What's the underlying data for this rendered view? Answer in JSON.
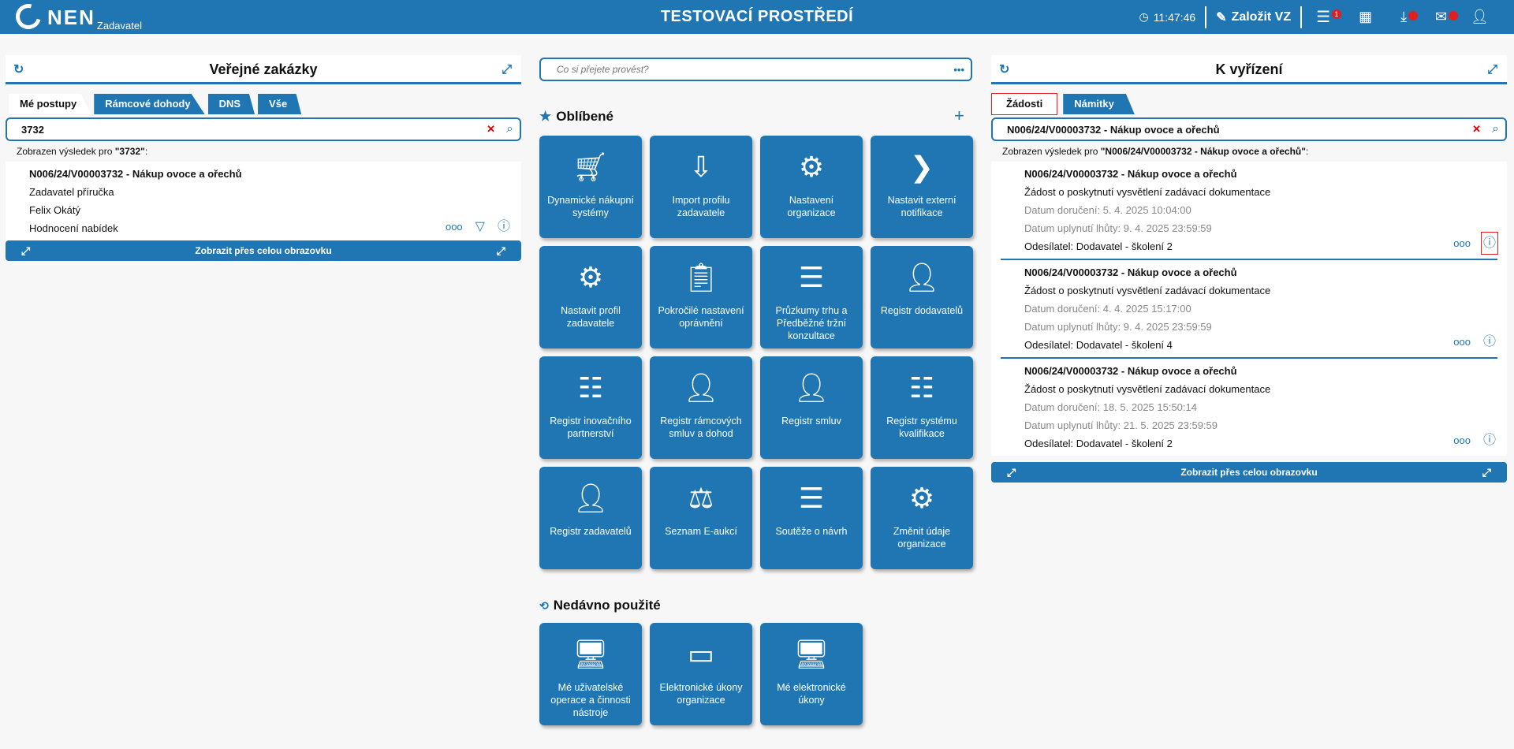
{
  "header": {
    "logo": "NEN",
    "logo_sub": "Zadavatel",
    "title": "TESTOVACÍ PROSTŘEDÍ",
    "time": "11:47:46",
    "create_label": "Založit VZ",
    "menu_badge": "1"
  },
  "left": {
    "title": "Veřejné zakázky",
    "tabs": [
      "Mé postupy",
      "Rámcové dohody",
      "DNS",
      "Vše"
    ],
    "search_value": "3732",
    "result_prefix": "Zobrazen výsledek pro ",
    "result_query": "\"3732\"",
    "result_suffix": ":",
    "item": {
      "title": "N006/24/V00003732 - Nákup ovoce a ořechů",
      "lines": [
        "Zadavatel příručka",
        "Felix Okátý",
        "Hodnocení nabídek"
      ]
    },
    "full_label": "Zobrazit přes celou obrazovku"
  },
  "middle": {
    "search_placeholder": "Co si přejete provést?",
    "favorites_title": "Oblíbené",
    "recent_title": "Nedávno použité",
    "favorites": [
      {
        "label": "Dynamické nákupní systémy",
        "icon": "cart-icon"
      },
      {
        "label": "Import profilu zadavatele",
        "icon": "import-icon"
      },
      {
        "label": "Nastavení organizace",
        "icon": "gear-building-icon"
      },
      {
        "label": "Nastavit externí notifikace",
        "icon": "chevron-right-circle-icon"
      },
      {
        "label": "Nastavit profil zadavatele",
        "icon": "gear-building-icon"
      },
      {
        "label": "Pokročilé nastavení oprávnění",
        "icon": "clipboard-user-icon"
      },
      {
        "label": "Průzkumy trhu a Předběžné tržní konzultace",
        "icon": "checklist-icon"
      },
      {
        "label": "Registr dodavatelů",
        "icon": "user-card-icon"
      },
      {
        "label": "Registr inovačního partnerství",
        "icon": "list-icon"
      },
      {
        "label": "Registr rámcových smluv a dohod",
        "icon": "user-card-icon"
      },
      {
        "label": "Registr smluv",
        "icon": "user-card-icon"
      },
      {
        "label": "Registr systému kvalifikace",
        "icon": "list-icon"
      },
      {
        "label": "Registr zadavatelů",
        "icon": "user-card-icon"
      },
      {
        "label": "Seznam E-aukcí",
        "icon": "gavel-icon"
      },
      {
        "label": "Soutěže o návrh",
        "icon": "checklist-icon"
      },
      {
        "label": "Změnit údaje organizace",
        "icon": "gear-building-icon"
      }
    ],
    "recent": [
      {
        "label": "Mé uživatelské operace a činnosti nástroje",
        "icon": "monitor-user-icon"
      },
      {
        "label": "Elektronické úkony organizace",
        "icon": "monitor-icon"
      },
      {
        "label": "Mé elektronické úkony",
        "icon": "monitor-user-icon"
      }
    ]
  },
  "right": {
    "title": "K vyřízení",
    "tabs": [
      "Žádosti",
      "Námitky"
    ],
    "search_value": "N006/24/V00003732 - Nákup ovoce a ořechů",
    "result_prefix": "Zobrazen výsledek pro ",
    "result_query": "\"N006/24/V00003732 - Nákup ovoce a ořechů\"",
    "result_suffix": ":",
    "items": [
      {
        "title": "N006/24/V00003732 - Nákup ovoce a ořechů",
        "type": "Žádost o poskytnutí vysvětlení zadávací dokumentace",
        "delivered": "Datum doručení: 5. 4. 2025 10:04:00",
        "deadline": "Datum uplynutí lhůty: 9. 4. 2025 23:59:59",
        "sender": "Odesílatel: Dodavatel - školení 2"
      },
      {
        "title": "N006/24/V00003732 - Nákup ovoce a ořechů",
        "type": "Žádost o poskytnutí vysvětlení zadávací dokumentace",
        "delivered": "Datum doručení: 4. 4. 2025 15:17:00",
        "deadline": "Datum uplynutí lhůty: 9. 4. 2025 23:59:59",
        "sender": "Odesílatel: Dodavatel - školení 4"
      },
      {
        "title": "N006/24/V00003732 - Nákup ovoce a ořechů",
        "type": "Žádost o poskytnutí vysvětlení zadávací dokumentace",
        "delivered": "Datum doručení: 18. 5. 2025 15:50:14",
        "deadline": "Datum uplynutí lhůty: 21. 5. 2025 23:59:59",
        "sender": "Odesílatel: Dodavatel - školení 2"
      }
    ],
    "full_label": "Zobrazit přes celou obrazovku"
  },
  "colors": {
    "brand": "#1f76b3",
    "alert": "#e02020"
  }
}
